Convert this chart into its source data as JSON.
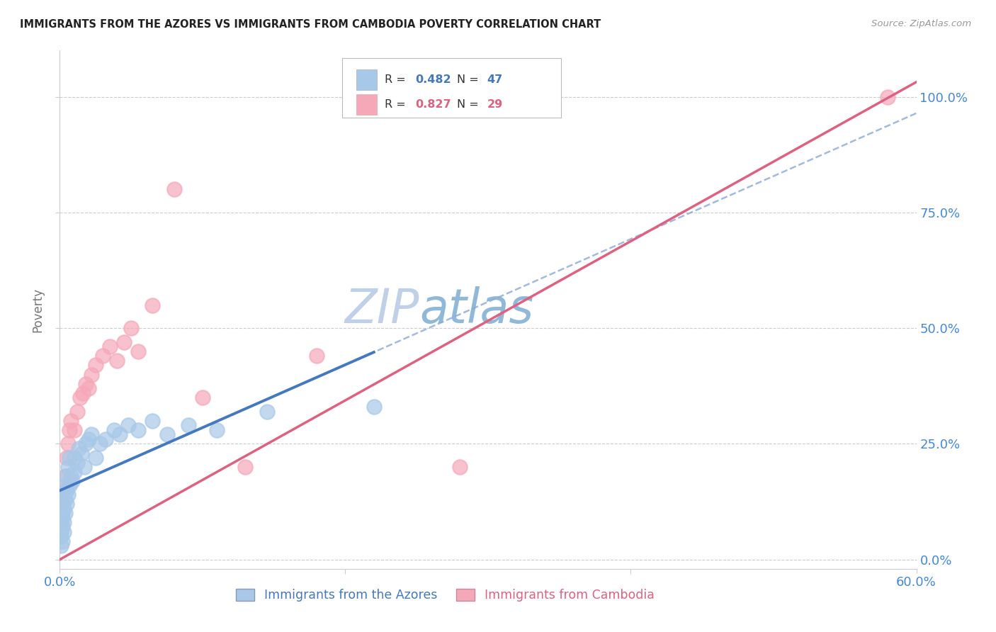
{
  "title": "IMMIGRANTS FROM THE AZORES VS IMMIGRANTS FROM CAMBODIA POVERTY CORRELATION CHART",
  "source": "Source: ZipAtlas.com",
  "ylabel_ticks_right": [
    "0.0%",
    "25.0%",
    "50.0%",
    "75.0%",
    "100.0%"
  ],
  "ylabel_label": "Poverty",
  "legend_label_azores": "Immigrants from the Azores",
  "legend_label_cambodia": "Immigrants from Cambodia",
  "R_azores": "0.482",
  "N_azores": "47",
  "R_cambodia": "0.827",
  "N_cambodia": "29",
  "azores_color": "#a8c8e8",
  "cambodia_color": "#f5a8b8",
  "azores_line_color": "#4478c0",
  "cambodia_line_color": "#e06080",
  "azores_dash_color": "#88aad8",
  "watermark_zip_color": "#c0d0e8",
  "watermark_atlas_color": "#90b8d8",
  "background_color": "#ffffff",
  "grid_color": "#cccccc",
  "title_color": "#222222",
  "right_tick_color": "#4488dd",
  "bottom_tick_color": "#4488dd",
  "azores_x": [
    0.001,
    0.001,
    0.001,
    0.001,
    0.002,
    0.002,
    0.002,
    0.002,
    0.002,
    0.003,
    0.003,
    0.003,
    0.003,
    0.004,
    0.004,
    0.004,
    0.005,
    0.005,
    0.005,
    0.006,
    0.006,
    0.007,
    0.007,
    0.008,
    0.009,
    0.01,
    0.01,
    0.012,
    0.013,
    0.015,
    0.017,
    0.018,
    0.02,
    0.022,
    0.025,
    0.028,
    0.032,
    0.038,
    0.042,
    0.048,
    0.055,
    0.065,
    0.075,
    0.09,
    0.11,
    0.145,
    0.22
  ],
  "azores_y": [
    0.05,
    0.06,
    0.03,
    0.08,
    0.07,
    0.09,
    0.12,
    0.04,
    0.1,
    0.11,
    0.08,
    0.14,
    0.06,
    0.13,
    0.16,
    0.1,
    0.15,
    0.18,
    0.12,
    0.14,
    0.2,
    0.16,
    0.22,
    0.18,
    0.17,
    0.19,
    0.22,
    0.21,
    0.24,
    0.23,
    0.2,
    0.25,
    0.26,
    0.27,
    0.22,
    0.25,
    0.26,
    0.28,
    0.27,
    0.29,
    0.28,
    0.3,
    0.27,
    0.29,
    0.28,
    0.32,
    0.33
  ],
  "cambodia_x": [
    0.001,
    0.002,
    0.003,
    0.004,
    0.005,
    0.006,
    0.007,
    0.008,
    0.01,
    0.012,
    0.014,
    0.016,
    0.018,
    0.02,
    0.022,
    0.025,
    0.03,
    0.035,
    0.04,
    0.045,
    0.05,
    0.055,
    0.065,
    0.08,
    0.1,
    0.13,
    0.18,
    0.28,
    0.58
  ],
  "cambodia_y": [
    0.08,
    0.12,
    0.15,
    0.18,
    0.22,
    0.25,
    0.28,
    0.3,
    0.28,
    0.32,
    0.35,
    0.36,
    0.38,
    0.37,
    0.4,
    0.42,
    0.44,
    0.46,
    0.43,
    0.47,
    0.5,
    0.45,
    0.55,
    0.8,
    0.35,
    0.2,
    0.44,
    0.2,
    1.0
  ],
  "xlim": [
    0.0,
    0.6
  ],
  "ylim": [
    -0.02,
    1.1
  ],
  "x_tick_positions": [
    0.0,
    0.2,
    0.4,
    0.6
  ],
  "x_tick_labels": [
    "0.0%",
    "",
    "",
    "60.0%"
  ],
  "y_tick_positions": [
    0.0,
    0.25,
    0.5,
    0.75,
    1.0
  ]
}
